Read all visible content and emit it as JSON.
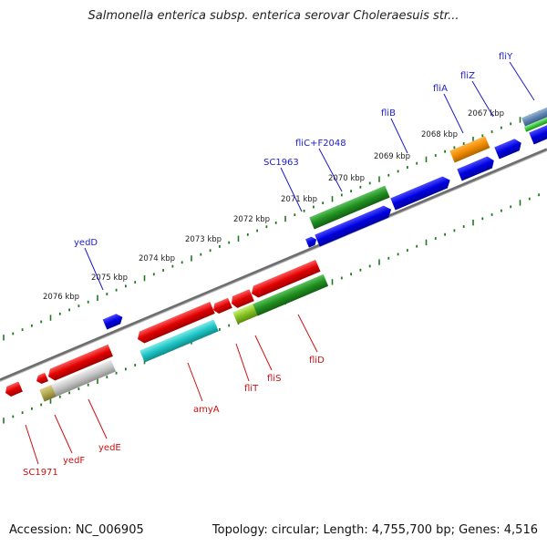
{
  "title": "Salmonella enterica subsp. enterica serovar Choleraesuis str...",
  "footer": {
    "accession": "Accession: NC_006905",
    "summary": "Topology: circular; Length: 4,755,700 bp; Genes: 4,516"
  },
  "colors": {
    "backbone": "#7a7a7a",
    "tick": "#1f7a1f",
    "forward_label": "#1c1ccc",
    "reverse_label": "#cc1111"
  },
  "ticks": [
    "2067 kbp",
    "2068 kbp",
    "2069 kbp",
    "2070 kbp",
    "2071 kbp",
    "2072 kbp",
    "2073 kbp",
    "2074 kbp",
    "2075 kbp",
    "2076 kbp"
  ],
  "forward_genes": [
    "fliY",
    "fliZ",
    "fliA",
    "fliB",
    "fliC+F2048",
    "SC1963",
    "yedD"
  ],
  "reverse_genes": [
    "fliD",
    "fliS",
    "fliT",
    "amyA",
    "yedE",
    "yedF",
    "SC1971"
  ]
}
